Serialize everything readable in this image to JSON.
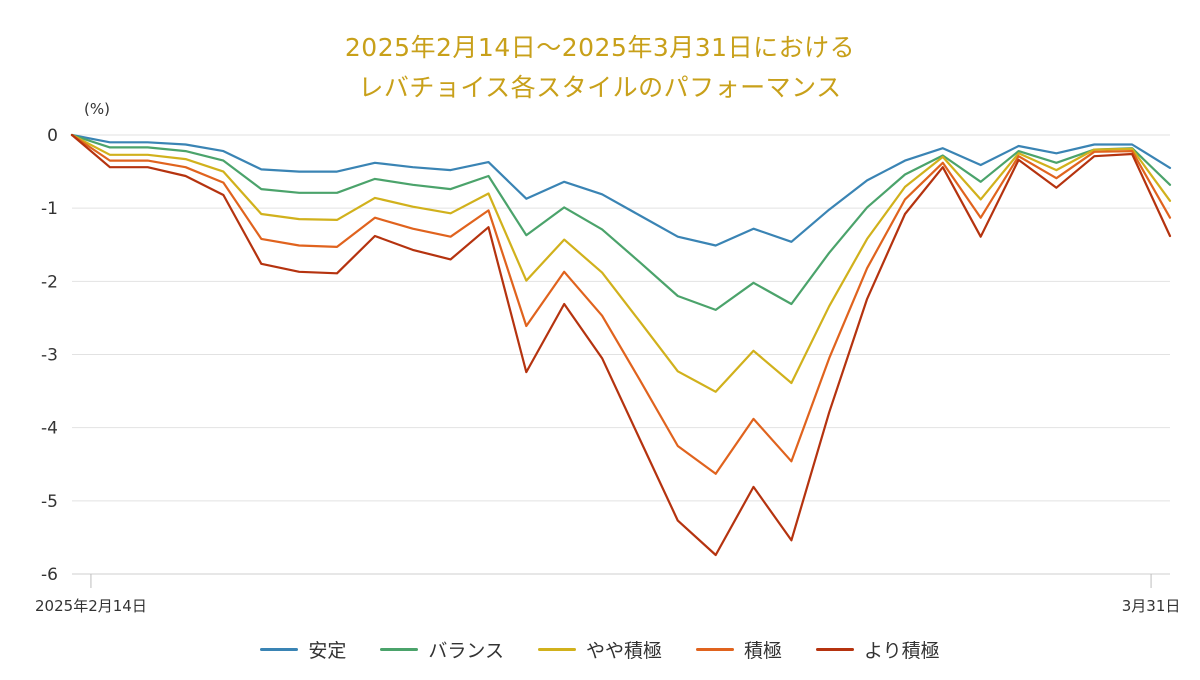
{
  "chart_data": {
    "type": "line",
    "title_line1": "2025年2月14日〜2025年3月31日における",
    "title_line2": "レバチョイス各スタイルのパフォーマンス",
    "unit_label": "(%)",
    "ylim": [
      -6,
      0
    ],
    "yticks": [
      "0",
      "-1",
      "-2",
      "-3",
      "-4",
      "-5",
      "-6"
    ],
    "x_tick_labels": [
      {
        "index": 0.5,
        "label": "2025年2月14日"
      },
      {
        "index": 28.5,
        "label": "3月31日"
      }
    ],
    "grid": true,
    "legend_position": "bottom",
    "series": [
      {
        "name": "安定",
        "color": "#3a84b4",
        "values": [
          0,
          -0.1,
          -0.1,
          -0.13,
          -0.22,
          -0.47,
          -0.5,
          -0.5,
          -0.38,
          -0.44,
          -0.48,
          -0.37,
          -0.87,
          -0.64,
          -0.81,
          -1.1,
          -1.39,
          -1.51,
          -1.28,
          -1.46,
          -1.02,
          -0.62,
          -0.35,
          -0.18,
          -0.41,
          -0.15,
          -0.25,
          -0.13,
          -0.13,
          -0.45
        ]
      },
      {
        "name": "バランス",
        "color": "#4ba36b",
        "values": [
          0,
          -0.17,
          -0.17,
          -0.22,
          -0.35,
          -0.74,
          -0.79,
          -0.79,
          -0.6,
          -0.68,
          -0.74,
          -0.56,
          -1.37,
          -0.99,
          -1.29,
          -1.74,
          -2.2,
          -2.39,
          -2.02,
          -2.31,
          -1.61,
          -0.99,
          -0.54,
          -0.28,
          -0.64,
          -0.22,
          -0.38,
          -0.2,
          -0.18,
          -0.68
        ]
      },
      {
        "name": "やや積極",
        "color": "#d1b11c",
        "values": [
          0,
          -0.27,
          -0.27,
          -0.33,
          -0.5,
          -1.08,
          -1.15,
          -1.16,
          -0.86,
          -0.98,
          -1.07,
          -0.8,
          -1.99,
          -1.43,
          -1.88,
          -2.55,
          -3.23,
          -3.51,
          -2.95,
          -3.39,
          -2.34,
          -1.42,
          -0.71,
          -0.3,
          -0.88,
          -0.25,
          -0.48,
          -0.2,
          -0.19,
          -0.9
        ]
      },
      {
        "name": "積極",
        "color": "#e0631e",
        "values": [
          0,
          -0.35,
          -0.35,
          -0.44,
          -0.65,
          -1.42,
          -1.51,
          -1.53,
          -1.13,
          -1.28,
          -1.39,
          -1.03,
          -2.61,
          -1.87,
          -2.47,
          -3.35,
          -4.25,
          -4.63,
          -3.88,
          -4.46,
          -3.05,
          -1.82,
          -0.88,
          -0.38,
          -1.13,
          -0.29,
          -0.59,
          -0.23,
          -0.22,
          -1.13
        ]
      },
      {
        "name": "より積極",
        "color": "#b5330f",
        "values": [
          0,
          -0.44,
          -0.44,
          -0.56,
          -0.82,
          -1.76,
          -1.87,
          -1.89,
          -1.38,
          -1.57,
          -1.7,
          -1.26,
          -3.24,
          -2.31,
          -3.05,
          -4.16,
          -5.27,
          -5.74,
          -4.81,
          -5.54,
          -3.79,
          -2.24,
          -1.08,
          -0.44,
          -1.39,
          -0.34,
          -0.72,
          -0.29,
          -0.26,
          -1.38
        ]
      }
    ]
  }
}
